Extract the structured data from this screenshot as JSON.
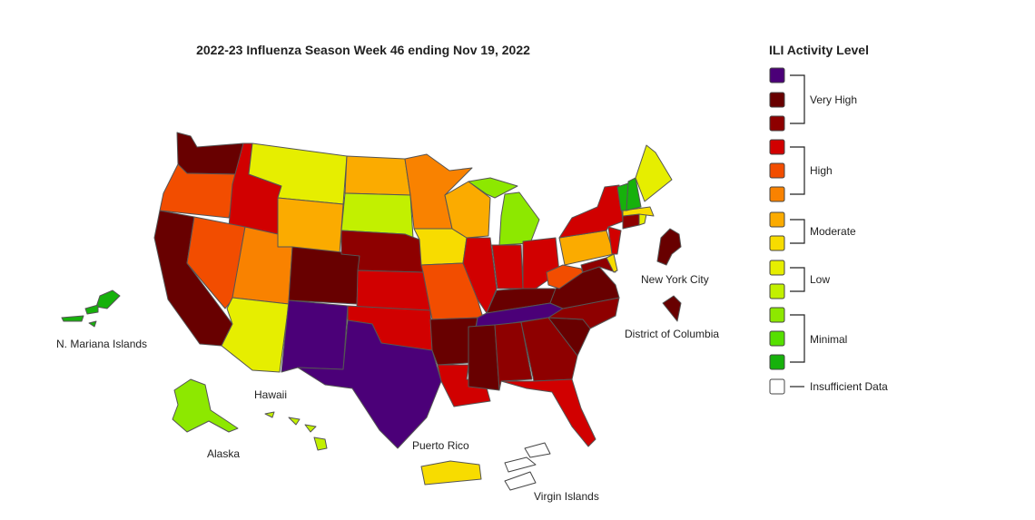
{
  "title": "2022-23 Influenza Season Week 46 ending Nov 19, 2022",
  "colors": {
    "very_high_3": "#4b0078",
    "very_high_2": "#680000",
    "very_high_1": "#8e0000",
    "high_3": "#d10000",
    "high_2": "#f24d00",
    "high_1": "#f98200",
    "moderate_2": "#fbab00",
    "moderate_1": "#f7dc00",
    "low_2": "#e6ee00",
    "low_1": "#c2f000",
    "minimal_3": "#8de800",
    "minimal_2": "#56e000",
    "minimal_1": "#16b10b",
    "insufficient": "#ffffff",
    "border": "#555555"
  },
  "legend": {
    "title": "ILI Activity Level",
    "groups": [
      {
        "label": "Very High",
        "levels": [
          "very_high_3",
          "very_high_2",
          "very_high_1"
        ]
      },
      {
        "label": "High",
        "levels": [
          "high_3",
          "high_2",
          "high_1"
        ]
      },
      {
        "label": "Moderate",
        "levels": [
          "moderate_2",
          "moderate_1"
        ]
      },
      {
        "label": "Low",
        "levels": [
          "low_2",
          "low_1"
        ]
      },
      {
        "label": "Minimal",
        "levels": [
          "minimal_3",
          "minimal_2",
          "minimal_1"
        ]
      }
    ],
    "insufficient_label": "Insufficient Data"
  },
  "region_labels": {
    "nyc": "New York City",
    "dc": "District of Columbia",
    "mariana": "N. Mariana Islands",
    "hawaii": "Hawaii",
    "alaska": "Alaska",
    "puerto_rico": "Puerto Rico",
    "virgin_islands": "Virgin Islands"
  },
  "regions": {
    "WA": "very_high_2",
    "OR": "high_2",
    "CA": "very_high_2",
    "ID": "high_3",
    "NV": "high_2",
    "MT": "low_2",
    "WY": "moderate_2",
    "UT": "high_1",
    "AZ": "low_2",
    "CO": "very_high_2",
    "NM": "very_high_3",
    "ND": "moderate_2",
    "SD": "low_1",
    "NE": "very_high_1",
    "KS": "high_3",
    "OK": "high_3",
    "TX": "very_high_3",
    "MN": "high_1",
    "IA": "moderate_1",
    "MO": "high_2",
    "AR": "very_high_2",
    "LA": "high_3",
    "WI": "moderate_2",
    "IL": "high_3",
    "MI": "minimal_3",
    "IN": "high_3",
    "OH": "high_3",
    "KY": "very_high_2",
    "TN": "very_high_3",
    "MS": "very_high_2",
    "AL": "very_high_1",
    "GA": "very_high_1",
    "FL": "high_3",
    "SC": "very_high_2",
    "NC": "very_high_1",
    "VA": "very_high_2",
    "WV": "high_2",
    "MD": "very_high_1",
    "DE": "moderate_1",
    "PA": "moderate_2",
    "NJ": "high_3",
    "NY": "high_3",
    "CT": "very_high_1",
    "RI": "low_2",
    "MA": "moderate_1",
    "VT": "minimal_1",
    "NH": "minimal_1",
    "ME": "low_2",
    "AK": "minimal_3",
    "HI": "low_1",
    "PR": "moderate_1",
    "VI": "insufficient",
    "GU": "minimal_1",
    "NYC": "very_high_2",
    "DC": "very_high_2"
  }
}
